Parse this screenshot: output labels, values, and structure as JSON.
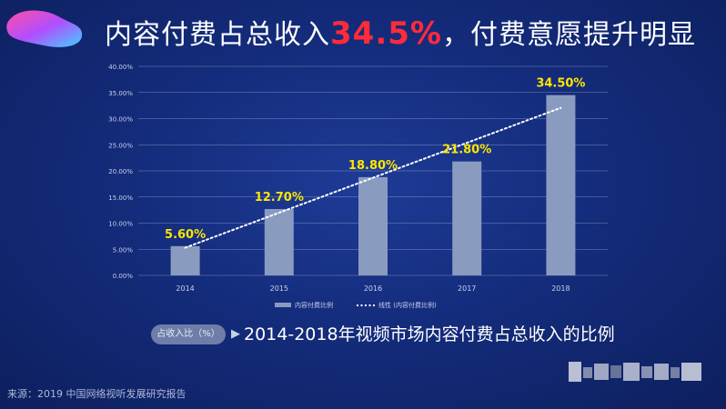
{
  "header": {
    "title_before": "内容付费占总收入",
    "title_highlight": "34.5%",
    "title_after": "，付费意愿提升明显"
  },
  "colors": {
    "bar": "#8a9bc0",
    "trend": "#ffffff",
    "label": "#ffe600",
    "highlight": "#ff2b3a",
    "grid": "#c9d3ee"
  },
  "chart_data": {
    "type": "bar",
    "categories": [
      "2014",
      "2015",
      "2016",
      "2017",
      "2018"
    ],
    "series": [
      {
        "name": "内容付费比例",
        "values": [
          5.6,
          12.7,
          18.8,
          21.8,
          34.5
        ]
      }
    ],
    "data_labels": [
      "5.60%",
      "12.70%",
      "18.80%",
      "21.80%",
      "34.50%"
    ],
    "trendline": {
      "name": "线性 (内容付费比例)",
      "type": "linear"
    },
    "y_ticks": [
      "0.00%",
      "5.00%",
      "10.00%",
      "15.00%",
      "20.00%",
      "25.00%",
      "30.00%",
      "35.00%",
      "40.00%"
    ],
    "ylim": [
      0,
      40
    ],
    "grid": true,
    "legend_position": "bottom"
  },
  "caption": {
    "pill": "占收入比（%）",
    "arrow": "▶",
    "text": "2014-2018年视频市场内容付费占总收入的比例"
  },
  "source": "来源：2019 中国网络视听发展研究报告"
}
